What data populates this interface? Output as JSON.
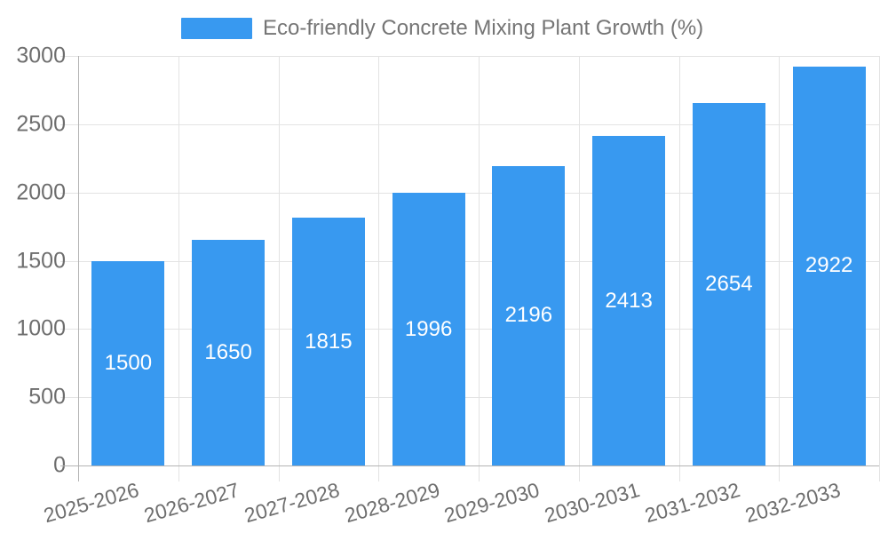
{
  "chart_data": {
    "type": "bar",
    "title": "Eco-friendly Concrete Mixing Plant Growth (%)",
    "legend_position": "top",
    "categories": [
      "2025-2026",
      "2026-2027",
      "2027-2028",
      "2028-2029",
      "2029-2030",
      "2030-2031",
      "2031-2032",
      "2032-2033"
    ],
    "values": [
      1500,
      1650,
      1815,
      1996,
      2196,
      2413,
      2654,
      2922
    ],
    "value_labels_shown": true,
    "xlabel": "",
    "ylabel": "",
    "ylim": [
      0,
      3000
    ],
    "yticks": [
      0,
      500,
      1000,
      1500,
      2000,
      2500,
      3000
    ],
    "grid": "horizontal-and-vertical",
    "colors": {
      "bar": "#3899f0",
      "bar_value_text": "#ffffff",
      "grid_line": "#e3e3e3",
      "axis_line": "#b3b3b3",
      "axis_tick_text": "#6e6e6e",
      "legend_text": "#757575",
      "background": "#ffffff"
    }
  }
}
